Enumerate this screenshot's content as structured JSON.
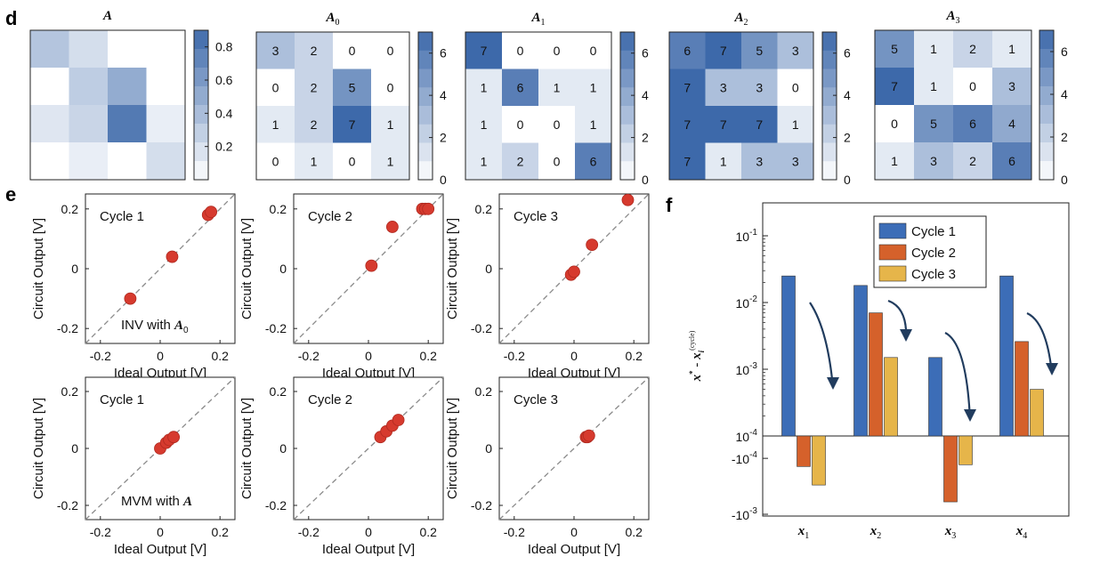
{
  "panel_labels": {
    "d": "d",
    "e": "e",
    "f": "f"
  },
  "colors": {
    "heat_low": "#ffffff",
    "heat_high": "#3d69aa",
    "marker": "#d63a2e",
    "diag": "#8a8a8a",
    "arrow": "#213c5e",
    "series": [
      "#3c6db7",
      "#d5612b",
      "#e6b54a"
    ]
  },
  "chart_data": [
    {
      "type": "heatmap",
      "id": "A",
      "title": "A",
      "title_sub": "",
      "matrix": [
        [
          0.35,
          0.2,
          0,
          0
        ],
        [
          0,
          0.3,
          0.5,
          0
        ],
        [
          0.15,
          0.25,
          0.8,
          0.1
        ],
        [
          0,
          0.1,
          0,
          0.2
        ]
      ],
      "show_values": false,
      "colorbar_ticks": [
        "0.8",
        "0.6",
        "0.4",
        "0.2"
      ],
      "colorbar_tick_values": [
        0.8,
        0.6,
        0.4,
        0.2
      ],
      "colorbar_range": [
        0,
        0.9
      ]
    },
    {
      "type": "heatmap",
      "id": "A0",
      "title": "A",
      "title_sub": "0",
      "matrix": [
        [
          3,
          2,
          0,
          0
        ],
        [
          0,
          2,
          5,
          0
        ],
        [
          1,
          2,
          7,
          1
        ],
        [
          0,
          1,
          0,
          1
        ]
      ],
      "show_values": true,
      "colorbar_ticks": [
        "6",
        "4",
        "2",
        "0"
      ],
      "colorbar_tick_values": [
        6,
        4,
        2,
        0
      ],
      "colorbar_range": [
        0,
        7
      ]
    },
    {
      "type": "heatmap",
      "id": "A1",
      "title": "A",
      "title_sub": "1",
      "matrix": [
        [
          7,
          0,
          0,
          0
        ],
        [
          1,
          6,
          1,
          1
        ],
        [
          1,
          0,
          0,
          1
        ],
        [
          1,
          2,
          0,
          6
        ]
      ],
      "show_values": true,
      "colorbar_ticks": [
        "6",
        "4",
        "2",
        "0"
      ],
      "colorbar_tick_values": [
        6,
        4,
        2,
        0
      ],
      "colorbar_range": [
        0,
        7
      ]
    },
    {
      "type": "heatmap",
      "id": "A2",
      "title": "A",
      "title_sub": "2",
      "matrix": [
        [
          6,
          7,
          5,
          3
        ],
        [
          7,
          3,
          3,
          0
        ],
        [
          7,
          7,
          7,
          1
        ],
        [
          7,
          1,
          3,
          3
        ]
      ],
      "show_values": true,
      "colorbar_ticks": [
        "6",
        "4",
        "2",
        "0"
      ],
      "colorbar_tick_values": [
        6,
        4,
        2,
        0
      ],
      "colorbar_range": [
        0,
        7
      ]
    },
    {
      "type": "heatmap",
      "id": "A3",
      "title": "A",
      "title_sub": "3",
      "matrix": [
        [
          5,
          1,
          2,
          1
        ],
        [
          7,
          1,
          0,
          3
        ],
        [
          0,
          5,
          6,
          4
        ],
        [
          1,
          3,
          2,
          6
        ]
      ],
      "show_values": true,
      "colorbar_ticks": [
        "6",
        "4",
        "2",
        "0"
      ],
      "colorbar_tick_values": [
        6,
        4,
        2,
        0
      ],
      "colorbar_range": [
        0,
        7
      ]
    },
    {
      "type": "scatter",
      "id": "e-inv-1",
      "label": "Cycle 1",
      "note": "INV with",
      "note_mat": "A",
      "note_sub": "0",
      "xlim": [
        -0.25,
        0.25
      ],
      "ylim": [
        -0.25,
        0.25
      ],
      "xticks": [
        -0.2,
        0,
        0.2
      ],
      "xtick_labels": [
        "-0.2",
        "0",
        "0.2"
      ],
      "yticks": [
        -0.2,
        0,
        0.2
      ],
      "ytick_labels": [
        "-0.2",
        "0",
        "0.2"
      ],
      "xlabel": "Ideal Output [V]",
      "ylabel": "Circuit Output [V]",
      "points": [
        [
          -0.1,
          -0.1
        ],
        [
          0.04,
          0.04
        ],
        [
          0.16,
          0.18
        ],
        [
          0.17,
          0.19
        ]
      ]
    },
    {
      "type": "scatter",
      "id": "e-inv-2",
      "label": "Cycle 2",
      "note": "",
      "note_mat": "",
      "note_sub": "",
      "xlim": [
        -0.25,
        0.25
      ],
      "ylim": [
        -0.25,
        0.25
      ],
      "xticks": [
        -0.2,
        0,
        0.2
      ],
      "xtick_labels": [
        "-0.2",
        "0",
        "0.2"
      ],
      "yticks": [
        -0.2,
        0,
        0.2
      ],
      "ytick_labels": [
        "-0.2",
        "0",
        "0.2"
      ],
      "xlabel": "Ideal Output [V]",
      "ylabel": "Circuit Output [V]",
      "points": [
        [
          0.01,
          0.01
        ],
        [
          0.08,
          0.14
        ],
        [
          0.18,
          0.2
        ],
        [
          0.19,
          0.2
        ],
        [
          0.2,
          0.2
        ]
      ]
    },
    {
      "type": "scatter",
      "id": "e-inv-3",
      "label": "Cycle 3",
      "note": "",
      "note_mat": "",
      "note_sub": "",
      "xlim": [
        -0.25,
        0.25
      ],
      "ylim": [
        -0.25,
        0.25
      ],
      "xticks": [
        -0.2,
        0,
        0.2
      ],
      "xtick_labels": [
        "-0.2",
        "0",
        "0.2"
      ],
      "yticks": [
        -0.2,
        0,
        0.2
      ],
      "ytick_labels": [
        "-0.2",
        "0",
        "0.2"
      ],
      "xlabel": "Ideal Output [V]",
      "ylabel": "Circuit Output [V]",
      "points": [
        [
          -0.01,
          -0.02
        ],
        [
          0.0,
          -0.01
        ],
        [
          0.06,
          0.08
        ],
        [
          0.18,
          0.23
        ]
      ]
    },
    {
      "type": "scatter",
      "id": "e-mvm-1",
      "label": "Cycle 1",
      "note": "MVM with",
      "note_mat": "A",
      "note_sub": "",
      "xlim": [
        -0.25,
        0.25
      ],
      "ylim": [
        -0.25,
        0.25
      ],
      "xticks": [
        -0.2,
        0,
        0.2
      ],
      "xtick_labels": [
        "-0.2",
        "0",
        "0.2"
      ],
      "yticks": [
        -0.2,
        0,
        0.2
      ],
      "ytick_labels": [
        "-0.2",
        "0",
        "0.2"
      ],
      "xlabel": "Ideal Output [V]",
      "ylabel": "Circuit Output [V]",
      "points": [
        [
          0.0,
          0.0
        ],
        [
          0.02,
          0.02
        ],
        [
          0.03,
          0.03
        ],
        [
          0.045,
          0.04
        ]
      ]
    },
    {
      "type": "scatter",
      "id": "e-mvm-2",
      "label": "Cycle 2",
      "note": "",
      "note_mat": "",
      "note_sub": "",
      "xlim": [
        -0.25,
        0.25
      ],
      "ylim": [
        -0.25,
        0.25
      ],
      "xticks": [
        -0.2,
        0,
        0.2
      ],
      "xtick_labels": [
        "-0.2",
        "0",
        "0.2"
      ],
      "yticks": [
        -0.2,
        0,
        0.2
      ],
      "ytick_labels": [
        "-0.2",
        "0",
        "0.2"
      ],
      "xlabel": "Ideal Output [V]",
      "ylabel": "Circuit Output [V]",
      "points": [
        [
          0.04,
          0.04
        ],
        [
          0.06,
          0.06
        ],
        [
          0.08,
          0.08
        ],
        [
          0.1,
          0.1
        ]
      ]
    },
    {
      "type": "scatter",
      "id": "e-mvm-3",
      "label": "Cycle 3",
      "note": "",
      "note_mat": "",
      "note_sub": "",
      "xlim": [
        -0.25,
        0.25
      ],
      "ylim": [
        -0.25,
        0.25
      ],
      "xticks": [
        -0.2,
        0,
        0.2
      ],
      "xtick_labels": [
        "-0.2",
        "0",
        "0.2"
      ],
      "yticks": [
        -0.2,
        0,
        0.2
      ],
      "ytick_labels": [
        "-0.2",
        "0",
        "0.2"
      ],
      "xlabel": "Ideal Output [V]",
      "ylabel": "Circuit Output [V]",
      "points": [
        [
          0.04,
          0.04
        ],
        [
          0.045,
          0.04
        ],
        [
          0.05,
          0.045
        ]
      ]
    },
    {
      "type": "bar",
      "id": "f",
      "yscale": "symlog",
      "ylabel_main": "x",
      "ylabel_sup_star": "*",
      "ylabel_minus": " - ",
      "ylabel_x2": "x",
      "ylabel_sub": "i",
      "ylabel_sup_cycle": "(cycle)",
      "categories": [
        {
          "name": "x",
          "sub": "1"
        },
        {
          "name": "x",
          "sub": "2"
        },
        {
          "name": "x",
          "sub": "3"
        },
        {
          "name": "x",
          "sub": "4"
        }
      ],
      "series": [
        {
          "name": "Cycle 1",
          "values": [
            0.025,
            0.018,
            0.0015,
            0.025
          ]
        },
        {
          "name": "Cycle 2",
          "values": [
            -0.00014,
            0.007,
            -0.0006,
            0.0026
          ]
        },
        {
          "name": "Cycle 3",
          "values": [
            -0.0003,
            0.0015,
            -0.00013,
            0.0005
          ]
        }
      ],
      "ytick_labels": [
        {
          "base": "10",
          "exp": "-1",
          "value": 0.1
        },
        {
          "base": "10",
          "exp": "-2",
          "value": 0.01
        },
        {
          "base": "10",
          "exp": "-3",
          "value": 0.001
        },
        {
          "base": "10",
          "exp": "-4",
          "value": 0.0001
        },
        {
          "base": "-10",
          "exp": "-4",
          "value": -0.0001
        },
        {
          "base": "-10",
          "exp": "-3",
          "value": -0.001
        }
      ],
      "legend_position": "top-center"
    }
  ]
}
